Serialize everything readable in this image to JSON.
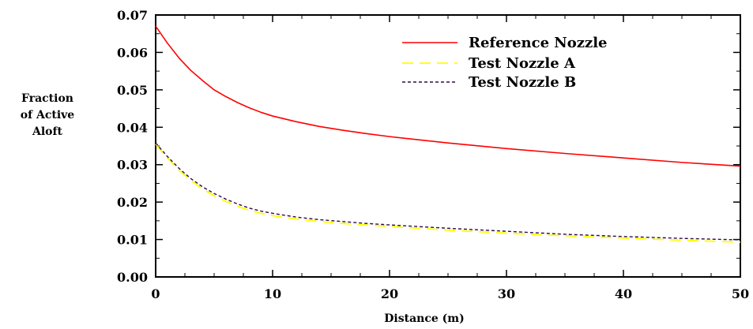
{
  "chart_data": {
    "type": "line",
    "xlabel": "Distance (m)",
    "ylabel_lines": [
      "Fraction",
      "of Active",
      "Aloft"
    ],
    "xlim": [
      0,
      50
    ],
    "ylim": [
      0,
      0.07
    ],
    "x_ticks": [
      "0",
      "10",
      "20",
      "30",
      "40",
      "50"
    ],
    "y_ticks": [
      "0.00",
      "0.01",
      "0.02",
      "0.03",
      "0.04",
      "0.05",
      "0.06",
      "0.07"
    ],
    "grid": false,
    "legend_position": "top-right",
    "series": [
      {
        "name": "Reference Nozzle",
        "color": "#ff0000",
        "dash": "solid",
        "x": [
          0,
          1,
          2,
          3,
          4,
          5,
          6,
          7,
          8,
          9,
          10,
          12,
          14,
          16,
          18,
          20,
          25,
          30,
          35,
          40,
          45,
          50
        ],
        "y": [
          0.067,
          0.0625,
          0.0585,
          0.0552,
          0.0525,
          0.05,
          0.0482,
          0.0466,
          0.0452,
          0.044,
          0.043,
          0.0415,
          0.0402,
          0.0392,
          0.0383,
          0.0375,
          0.0358,
          0.0343,
          0.033,
          0.0318,
          0.0306,
          0.0296
        ]
      },
      {
        "name": "Test Nozzle A",
        "color": "#ffff00",
        "dash": "long-dash",
        "x": [
          0,
          1,
          2,
          3,
          4,
          5,
          6,
          7,
          8,
          9,
          10,
          12,
          14,
          16,
          18,
          20,
          25,
          30,
          35,
          40,
          45,
          50
        ],
        "y": [
          0.0355,
          0.0318,
          0.0285,
          0.0258,
          0.0235,
          0.0217,
          0.0202,
          0.0189,
          0.0178,
          0.017,
          0.0164,
          0.0155,
          0.0148,
          0.0143,
          0.0139,
          0.0135,
          0.0125,
          0.0117,
          0.011,
          0.0104,
          0.0098,
          0.0093
        ]
      },
      {
        "name": "Test Nozzle B",
        "color": "#2e0a4a",
        "dash": "short-dash",
        "x": [
          0,
          1,
          2,
          3,
          4,
          5,
          6,
          7,
          8,
          9,
          10,
          12,
          14,
          16,
          18,
          20,
          25,
          30,
          35,
          40,
          45,
          50
        ],
        "y": [
          0.0358,
          0.0322,
          0.029,
          0.0263,
          0.0241,
          0.0223,
          0.0208,
          0.0195,
          0.0184,
          0.0176,
          0.017,
          0.016,
          0.0153,
          0.0148,
          0.0143,
          0.0139,
          0.013,
          0.0122,
          0.0114,
          0.0108,
          0.0103,
          0.0099
        ]
      }
    ]
  }
}
